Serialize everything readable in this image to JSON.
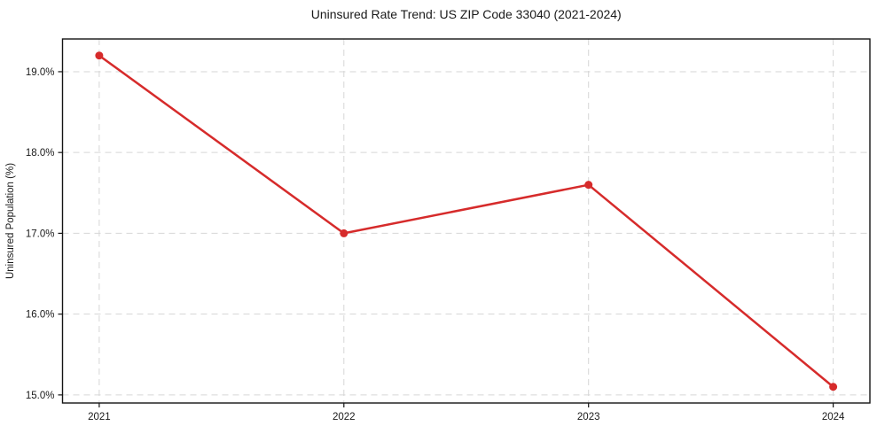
{
  "chart_data": {
    "type": "line",
    "title": "Uninsured Rate Trend: US ZIP Code 33040 (2021-2024)",
    "xlabel": "",
    "ylabel": "Uninsured Population (%)",
    "x": [
      2021,
      2022,
      2023,
      2024
    ],
    "x_tick_labels": [
      "2021",
      "2022",
      "2023",
      "2024"
    ],
    "values": [
      19.2,
      17.0,
      17.6,
      15.1
    ],
    "y_ticks": [
      15.0,
      16.0,
      17.0,
      18.0,
      19.0
    ],
    "y_tick_labels": [
      "15.0%",
      "16.0%",
      "17.0%",
      "18.0%",
      "19.0%"
    ],
    "xlim": [
      2020.85,
      2024.15
    ],
    "ylim": [
      14.9,
      19.405
    ],
    "grid": "both-dashed",
    "legend_position": "none",
    "marker": "circle",
    "colors": {
      "line": "#d62b2b",
      "marker": "#d62b2b",
      "grid": "#d6d6d6",
      "spine": "#141414",
      "tick": "#141414",
      "text": "#1a1a1a",
      "background": "#ffffff"
    }
  }
}
